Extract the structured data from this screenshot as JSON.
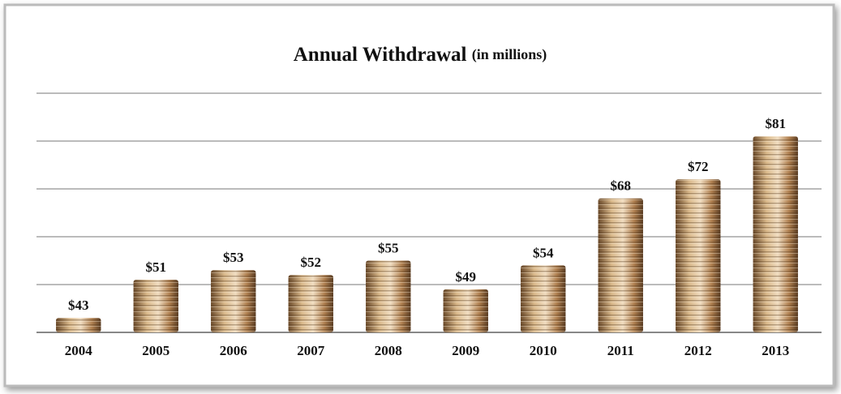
{
  "chart_data": {
    "type": "bar",
    "title": "Annual Withdrawal",
    "subtitle": "(in millions)",
    "categories": [
      "2004",
      "2005",
      "2006",
      "2007",
      "2008",
      "2009",
      "2010",
      "2011",
      "2012",
      "2013"
    ],
    "values": [
      43,
      51,
      53,
      52,
      55,
      49,
      54,
      68,
      72,
      81
    ],
    "value_labels": [
      "$43",
      "$51",
      "$53",
      "$52",
      "$55",
      "$49",
      "$54",
      "$68",
      "$72",
      "$81"
    ],
    "color": "#b0895a",
    "ylim": [
      40,
      90
    ],
    "yticks": [
      40,
      50,
      60,
      70,
      80,
      90
    ],
    "grid": true
  }
}
